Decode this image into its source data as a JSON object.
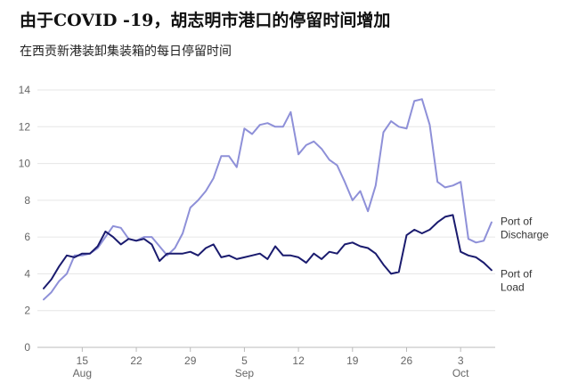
{
  "title": "由于COVID -19，胡志明市港口的停留时间增加",
  "subtitle": "在西贡新港装卸集装箱的每日停留时间",
  "chart_data": {
    "type": "line",
    "ylim": [
      0,
      14
    ],
    "yticks": [
      0,
      2,
      4,
      6,
      8,
      10,
      12,
      14
    ],
    "xlim": [
      0,
      50
    ],
    "xticks": [
      {
        "pos": 5,
        "label": "15"
      },
      {
        "pos": 12,
        "label": "22"
      },
      {
        "pos": 19,
        "label": "29"
      },
      {
        "pos": 26,
        "label": "5"
      },
      {
        "pos": 33,
        "label": "12"
      },
      {
        "pos": 40,
        "label": "19"
      },
      {
        "pos": 47,
        "label": "26"
      },
      {
        "pos": 54,
        "label": "3"
      }
    ],
    "month_labels": [
      {
        "pos": 5,
        "label": "Aug"
      },
      {
        "pos": 26,
        "label": "Sep"
      },
      {
        "pos": 54,
        "label": "Oct"
      }
    ],
    "grid": true,
    "series": [
      {
        "name": "Port of Discharge",
        "label_lines": [
          "Port of",
          "Discharge"
        ],
        "color": "#8e90d8",
        "values": [
          2.6,
          3.0,
          3.6,
          4.0,
          5.0,
          5.0,
          5.1,
          5.4,
          6.0,
          6.6,
          6.5,
          5.9,
          5.8,
          6.0,
          6.0,
          5.5,
          5.0,
          5.4,
          6.2,
          7.6,
          8.0,
          8.5,
          9.2,
          10.4,
          10.4,
          9.8,
          11.9,
          11.6,
          12.1,
          12.2,
          12.0,
          12.0,
          12.8,
          10.5,
          11.0,
          11.2,
          10.8,
          10.2,
          9.9,
          9.0,
          8.0,
          8.5,
          7.4,
          8.8,
          11.7,
          12.3,
          12.0,
          11.9,
          13.4,
          13.5,
          12.1,
          9.0,
          8.7,
          8.8,
          9.0,
          5.9,
          5.7,
          5.8,
          6.8
        ]
      },
      {
        "name": "Port of Load",
        "label_lines": [
          "Port of",
          "Load"
        ],
        "color": "#1a1b6e",
        "values": [
          3.2,
          3.7,
          4.4,
          5.0,
          4.9,
          5.1,
          5.1,
          5.5,
          6.3,
          6.0,
          5.6,
          5.9,
          5.8,
          5.9,
          5.6,
          4.7,
          5.1,
          5.1,
          5.1,
          5.2,
          5.0,
          5.4,
          5.6,
          4.9,
          5.0,
          4.8,
          4.9,
          5.0,
          5.1,
          4.8,
          5.5,
          5.0,
          5.0,
          4.9,
          4.6,
          5.1,
          4.8,
          5.2,
          5.1,
          5.6,
          5.7,
          5.5,
          5.4,
          5.1,
          4.5,
          4.0,
          4.1,
          6.1,
          6.4,
          6.2,
          6.4,
          6.8,
          7.1,
          7.2,
          5.2,
          5.0,
          4.9,
          4.6,
          4.2
        ]
      }
    ]
  }
}
